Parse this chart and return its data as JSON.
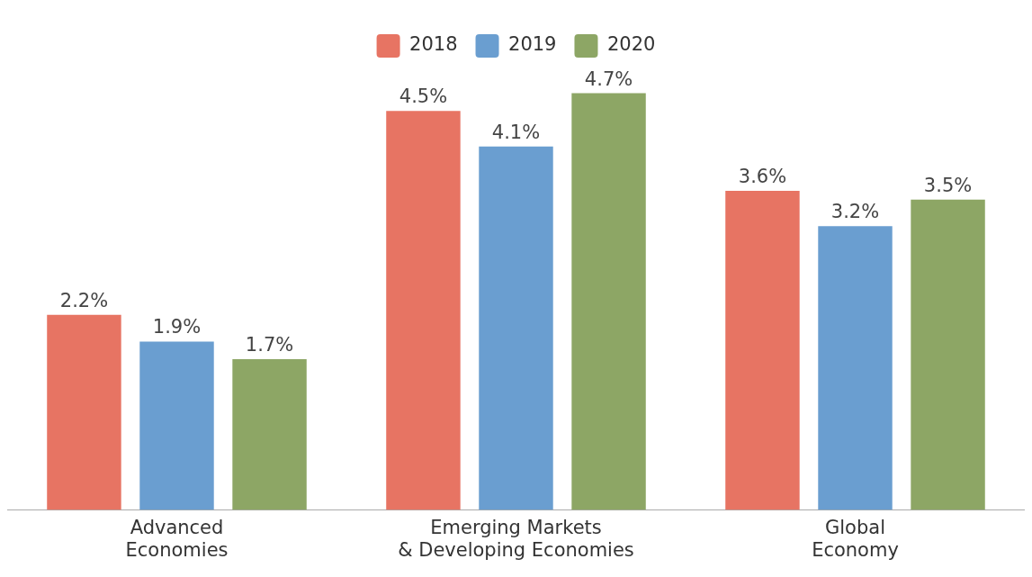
{
  "chart_data": {
    "type": "bar",
    "categories": [
      "Advanced\nEconomies",
      "Emerging Markets\n& Developing Economies",
      "Global\nEconomy"
    ],
    "series": [
      {
        "name": "2018",
        "color": "#e77463",
        "values": [
          2.2,
          4.5,
          3.6
        ],
        "value_labels": [
          "2.2%",
          "4.5%",
          "3.6%"
        ]
      },
      {
        "name": "2019",
        "color": "#6a9ed0",
        "values": [
          1.9,
          4.1,
          3.2
        ],
        "value_labels": [
          "1.9%",
          "4.1%",
          "3.2%"
        ]
      },
      {
        "name": "2020",
        "color": "#8da665",
        "values": [
          1.7,
          4.7,
          3.5
        ],
        "value_labels": [
          "1.7%",
          "4.7%",
          "3.5%"
        ]
      }
    ],
    "legend": "top",
    "tick_labels": "x"
  }
}
